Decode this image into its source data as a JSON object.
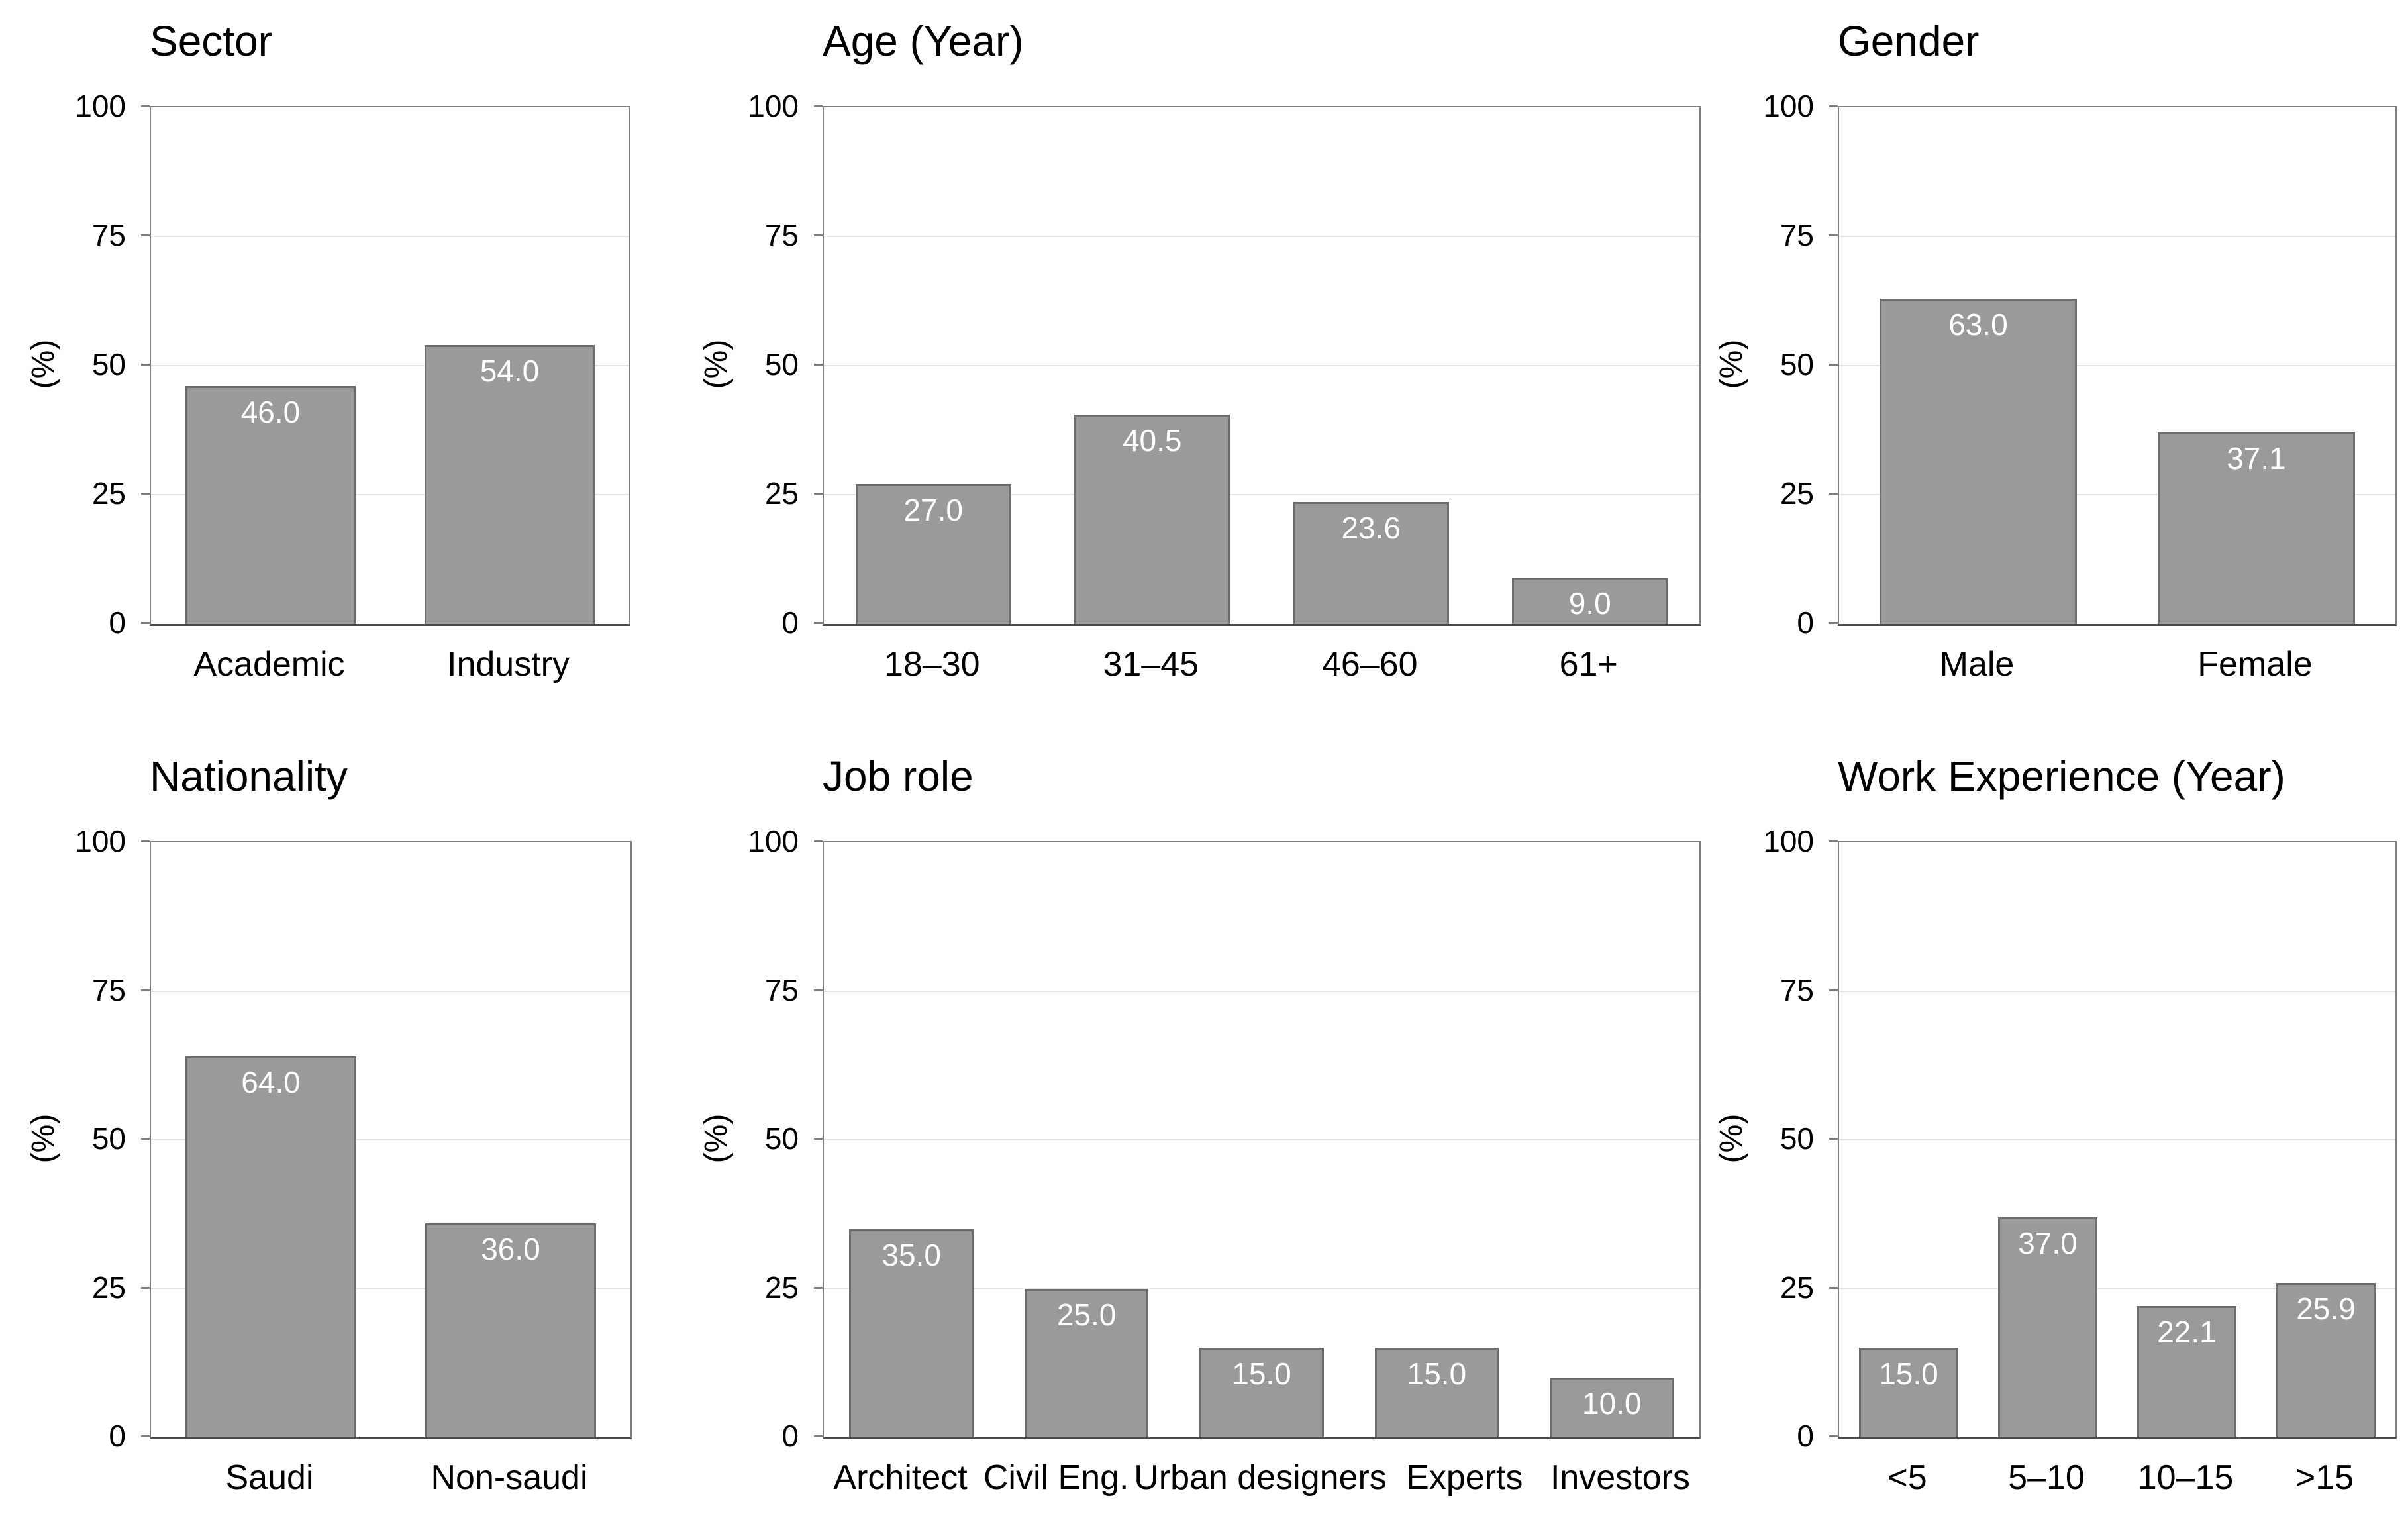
{
  "figure": {
    "background": "#ffffff",
    "shared_y_axis_label": "(%)",
    "shared_y_ticks": [
      "0",
      "25",
      "50",
      "75",
      "100"
    ]
  },
  "styles": {
    "page_bg": "#ffffff",
    "bar_fill": "#9a9a9a",
    "bar_border": "#6d6d6d",
    "grid": "#e3e3e3",
    "box_border": "#7e7e7e",
    "axis_bottom": "#4a4a4a",
    "text": "#000000",
    "value_text": "#ffffff"
  },
  "chart_data": [
    {
      "type": "bar",
      "title": "Sector",
      "xlabel": "",
      "ylabel": "(%)",
      "ylim": [
        0,
        100
      ],
      "yticks": [
        0,
        25,
        50,
        75,
        100
      ],
      "gridlines": [
        25,
        50,
        75
      ],
      "legend": "none",
      "categories": [
        "Academic",
        "Industry"
      ],
      "values": [
        46.0,
        54.0
      ],
      "value_labels": [
        "46.0",
        "54.0"
      ]
    },
    {
      "type": "bar",
      "title": "Age (Year)",
      "xlabel": "",
      "ylabel": "(%)",
      "ylim": [
        0,
        100
      ],
      "yticks": [
        0,
        25,
        50,
        75,
        100
      ],
      "gridlines": [
        25,
        50,
        75
      ],
      "legend": "none",
      "categories": [
        "18–30",
        "31–45",
        "46–60",
        "61+"
      ],
      "values": [
        27.0,
        40.5,
        23.6,
        9.0
      ],
      "value_labels": [
        "27.0",
        "40.5",
        "23.6",
        "9.0"
      ]
    },
    {
      "type": "bar",
      "title": "Gender",
      "xlabel": "",
      "ylabel": "(%)",
      "ylim": [
        0,
        100
      ],
      "yticks": [
        0,
        25,
        50,
        75,
        100
      ],
      "gridlines": [
        25,
        50,
        75
      ],
      "legend": "none",
      "categories": [
        "Male",
        "Female"
      ],
      "values": [
        63.0,
        37.1
      ],
      "value_labels": [
        "63.0",
        "37.1"
      ]
    },
    {
      "type": "bar",
      "title": "Nationality",
      "xlabel": "",
      "ylabel": "(%)",
      "ylim": [
        0,
        100
      ],
      "yticks": [
        0,
        25,
        50,
        75,
        100
      ],
      "gridlines": [
        25,
        50,
        75
      ],
      "legend": "none",
      "categories": [
        "Saudi",
        "Non-saudi"
      ],
      "values": [
        64.0,
        36.0
      ],
      "value_labels": [
        "64.0",
        "36.0"
      ]
    },
    {
      "type": "bar",
      "title": "Job role",
      "xlabel": "",
      "ylabel": "(%)",
      "ylim": [
        0,
        100
      ],
      "yticks": [
        0,
        25,
        50,
        75,
        100
      ],
      "gridlines": [
        25,
        50,
        75
      ],
      "legend": "none",
      "categories": [
        "Architect",
        "Civil Eng.",
        "Urban designers",
        "Experts",
        "Investors"
      ],
      "values": [
        35.0,
        25.0,
        15.0,
        15.0,
        10.0
      ],
      "value_labels": [
        "35.0",
        "25.0",
        "15.0",
        "15.0",
        "10.0"
      ]
    },
    {
      "type": "bar",
      "title": "Work Experience (Year)",
      "xlabel": "",
      "ylabel": "(%)",
      "ylim": [
        0,
        100
      ],
      "yticks": [
        0,
        25,
        50,
        75,
        100
      ],
      "gridlines": [
        25,
        50,
        75
      ],
      "legend": "none",
      "categories": [
        "<5",
        "5–10",
        "10–15",
        ">15"
      ],
      "values": [
        15.0,
        37.0,
        22.1,
        25.9
      ],
      "value_labels": [
        "15.0",
        "37.0",
        "22.1",
        "25.9"
      ]
    }
  ]
}
